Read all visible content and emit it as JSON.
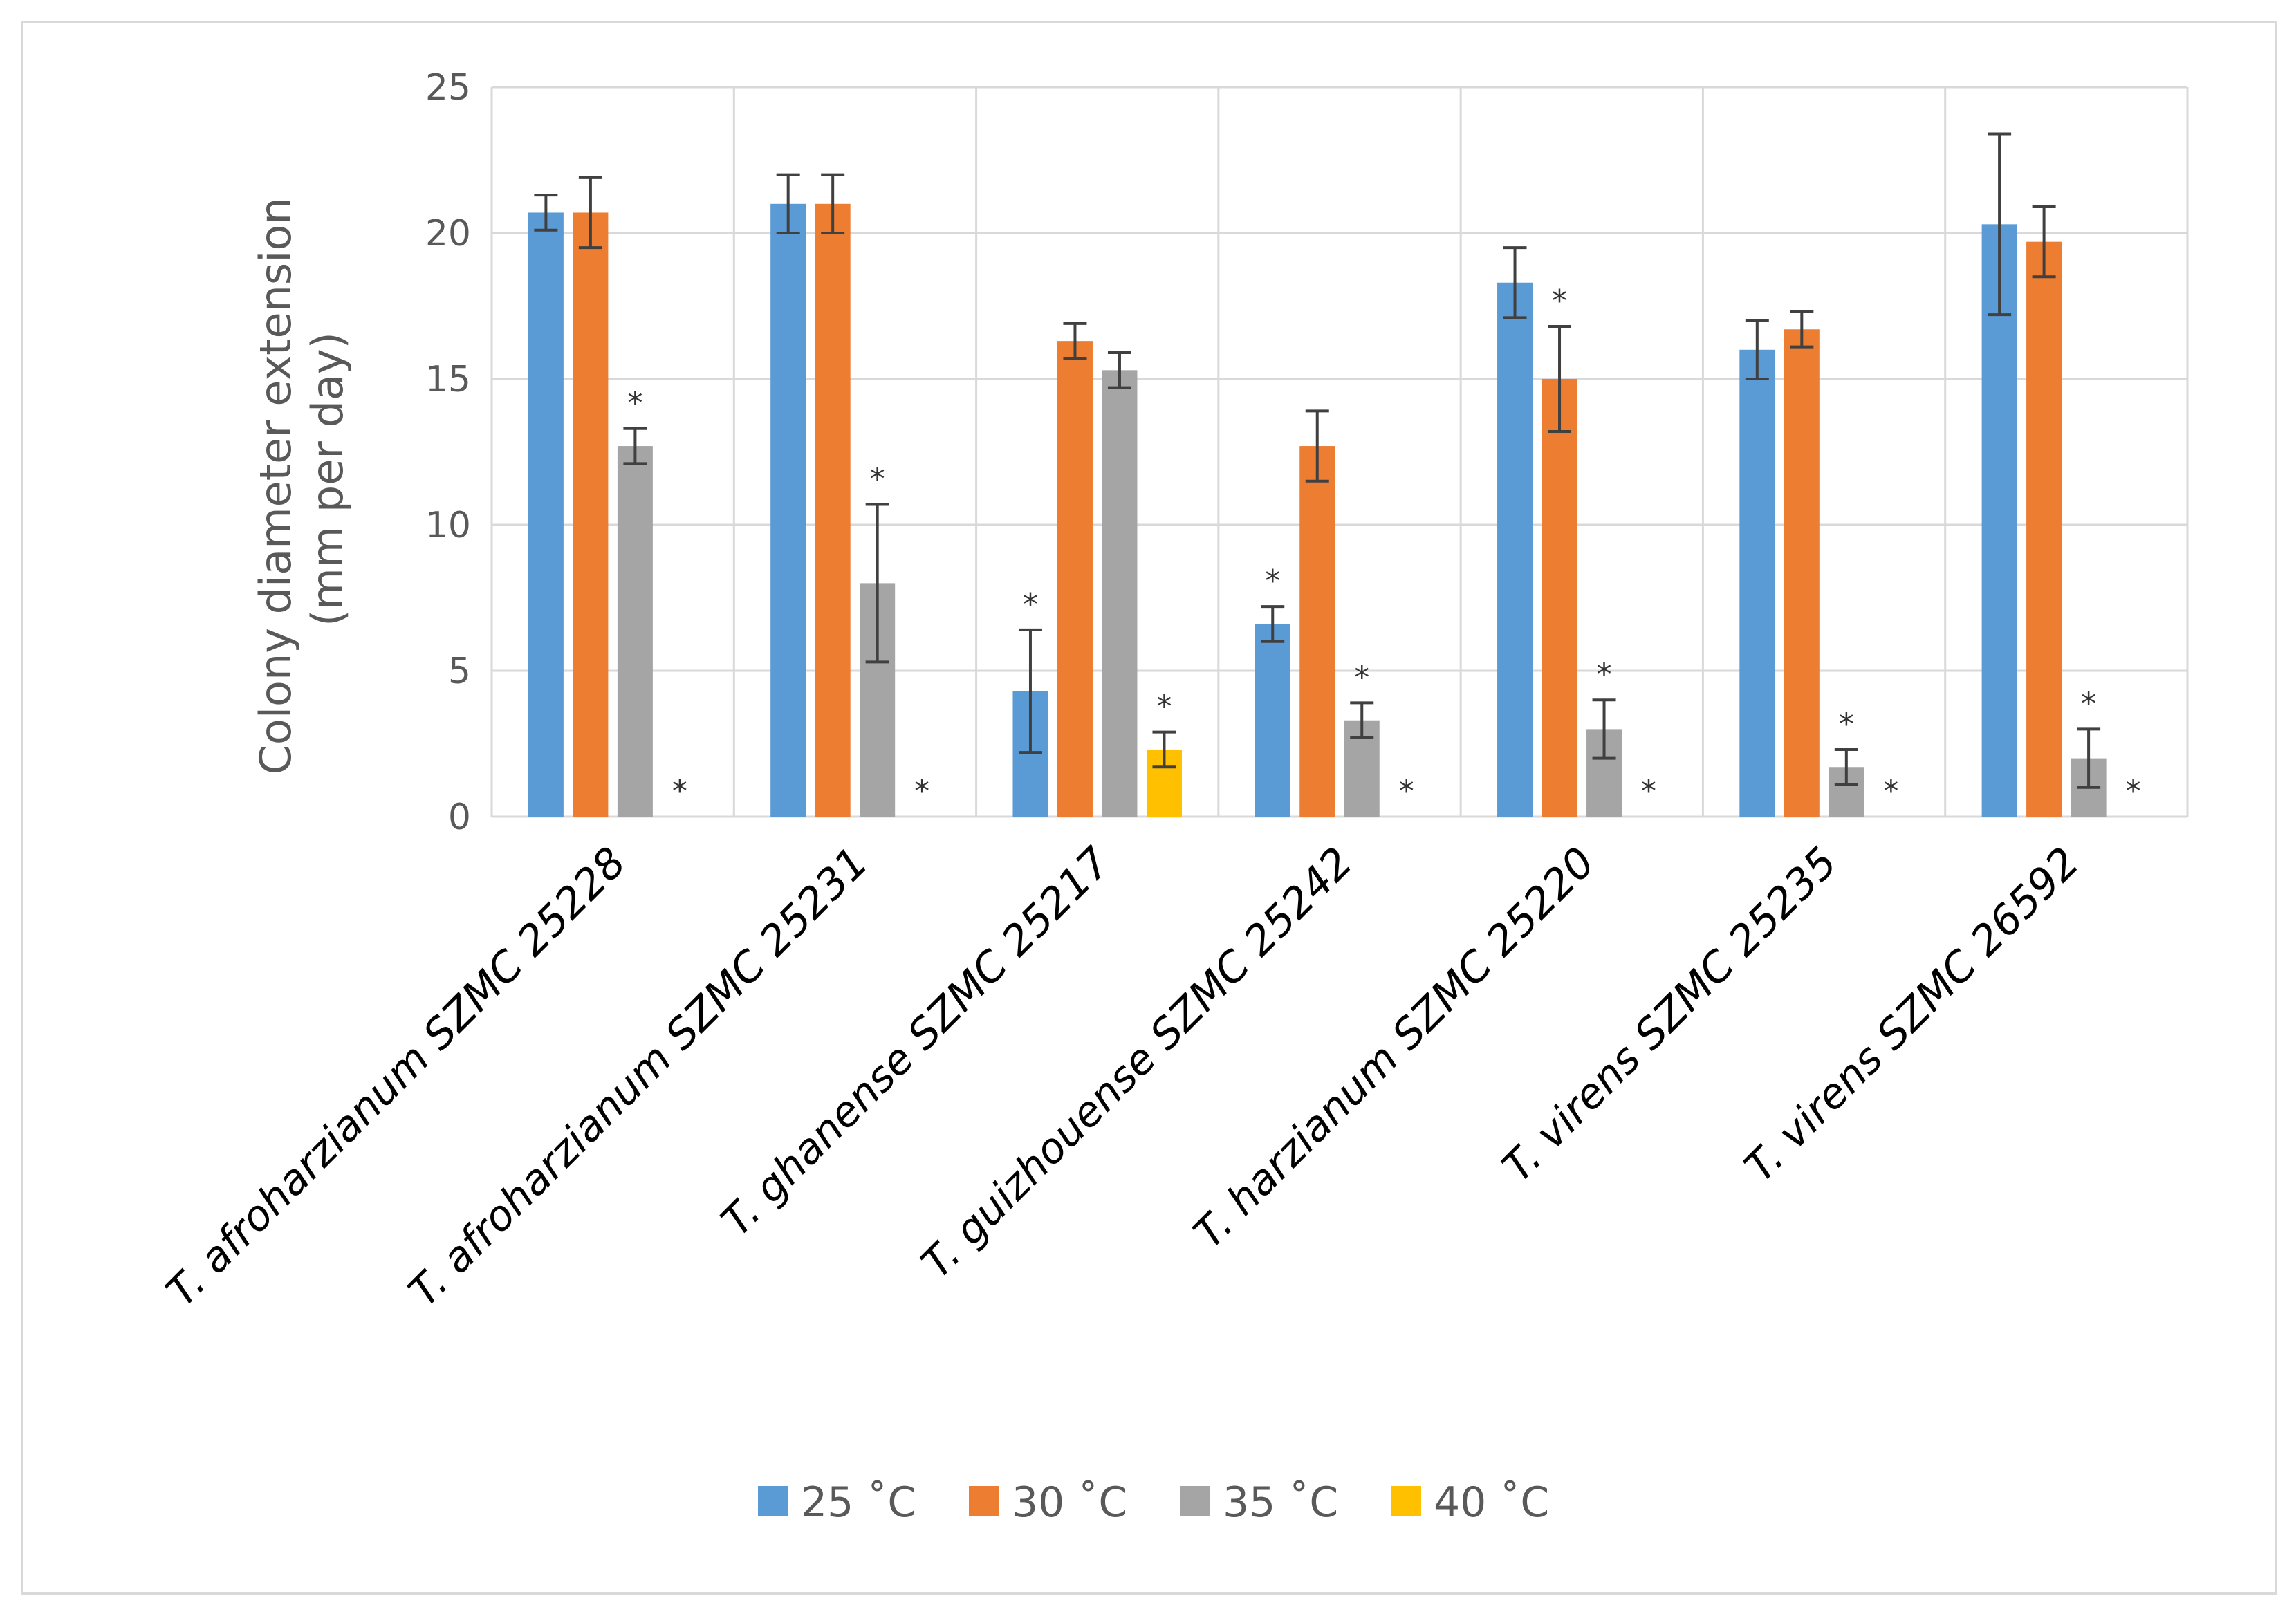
{
  "chart_data": {
    "type": "bar",
    "title": "",
    "xlabel": "",
    "ylabel": "Colony diameter extension (mm per day)",
    "ylabel_lines": [
      "Colony diameter extension",
      "(mm per day)"
    ],
    "ylim": [
      0,
      25
    ],
    "yticks": [
      "0",
      "5",
      "10",
      "15",
      "20",
      "25"
    ],
    "grid": true,
    "legend_position": "bottom",
    "categories": [
      "T. afroharzianum SZMC 25228",
      "T. afroharzianum SZMC 25231",
      "T. ghanense SZMC 25217",
      "T. guizhouense SZMC 25242",
      "T. harzianum SZMC 25220",
      "T. virens SZMC 25235",
      "T. virens SZMC 26592"
    ],
    "series": [
      {
        "name": "25 ˚C",
        "color": "#5b9bd5",
        "values": [
          20.7,
          21.0,
          4.3,
          6.6,
          18.3,
          16.0,
          20.3
        ],
        "errors": [
          0.6,
          1.0,
          2.1,
          0.6,
          1.2,
          1.0,
          3.1
        ],
        "significant": [
          false,
          false,
          true,
          true,
          false,
          false,
          false
        ]
      },
      {
        "name": "30 ˚C",
        "color": "#ed7d31",
        "values": [
          20.7,
          21.0,
          16.3,
          12.7,
          15.0,
          16.7,
          19.7
        ],
        "errors": [
          1.2,
          1.0,
          0.6,
          1.2,
          1.8,
          0.6,
          1.2
        ],
        "significant": [
          false,
          false,
          false,
          false,
          true,
          false,
          false
        ]
      },
      {
        "name": "35 ˚C",
        "color": "#a5a5a5",
        "values": [
          12.7,
          8.0,
          15.3,
          3.3,
          3.0,
          1.7,
          2.0
        ],
        "errors": [
          0.6,
          2.7,
          0.6,
          0.6,
          1.0,
          0.6,
          1.0
        ],
        "significant": [
          true,
          true,
          false,
          true,
          true,
          true,
          true
        ]
      },
      {
        "name": "40 ˚C",
        "color": "#ffc000",
        "values": [
          0.0,
          0.0,
          2.3,
          0.0,
          0.0,
          0.0,
          0.0
        ],
        "errors": [
          0,
          0,
          0.6,
          0,
          0,
          0,
          0
        ],
        "significant": [
          true,
          true,
          true,
          true,
          true,
          true,
          true
        ]
      }
    ],
    "significance_marker": "*"
  }
}
